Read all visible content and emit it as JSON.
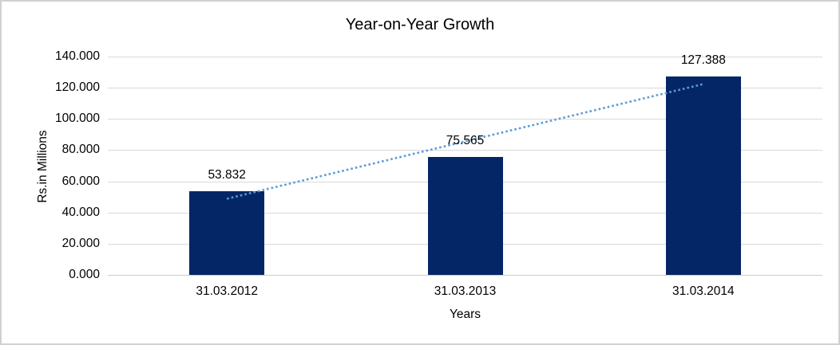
{
  "chart_data": {
    "type": "bar",
    "title": "Year-on-Year Growth",
    "xlabel": "Years",
    "ylabel": "Rs.in Millions",
    "categories": [
      "31.03.2012",
      "31.03.2013",
      "31.03.2014"
    ],
    "values": [
      53.832,
      75.565,
      127.388
    ],
    "data_labels": [
      "53.832",
      "75.565",
      "127.388"
    ],
    "ylim": [
      0,
      140
    ],
    "y_tick_labels": [
      "0.000",
      "20.000",
      "40.000",
      "60.000",
      "80.000",
      "100.000",
      "120.000",
      "140.000"
    ],
    "grid": true,
    "legend": "none",
    "colors": {
      "bar": "#052666",
      "trendline": "#5b9bd5",
      "gridline": "#d9d9d9",
      "text": "#000000",
      "frame_border": "#d0d0d0"
    },
    "trendline": {
      "kind": "linear",
      "style": "dotted",
      "spans": "first-to-last-category-center"
    }
  }
}
